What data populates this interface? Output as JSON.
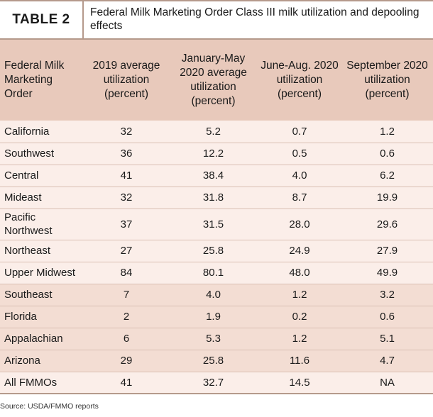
{
  "table": {
    "label": "TABLE 2",
    "title": "Federal Milk Marketing Order Class III milk utilization and depooling effects",
    "headers": [
      "Federal Milk Marketing Order",
      "2019 average utilization (percent)",
      "January-May 2020 average utilization (percent)",
      "June-Aug. 2020 utilization (percent)",
      "September 2020 utilization (percent)"
    ],
    "rows": [
      {
        "order": "California",
        "y2019": "32",
        "janmay": "5.2",
        "junaug": "0.7",
        "sep": "1.2"
      },
      {
        "order": "Southwest",
        "y2019": "36",
        "janmay": "12.2",
        "junaug": "0.5",
        "sep": "0.6"
      },
      {
        "order": "Central",
        "y2019": "41",
        "janmay": "38.4",
        "junaug": "4.0",
        "sep": "6.2"
      },
      {
        "order": "Mideast",
        "y2019": "32",
        "janmay": "31.8",
        "junaug": "8.7",
        "sep": "19.9"
      },
      {
        "order": "Pacific Northwest",
        "y2019": "37",
        "janmay": "31.5",
        "junaug": "28.0",
        "sep": "29.6"
      },
      {
        "order": "Northeast",
        "y2019": "27",
        "janmay": "25.8",
        "junaug": "24.9",
        "sep": "27.9"
      },
      {
        "order": "Upper Midwest",
        "y2019": "84",
        "janmay": "80.1",
        "junaug": "48.0",
        "sep": "49.9"
      },
      {
        "order": "Southeast",
        "y2019": "7",
        "janmay": "4.0",
        "junaug": "1.2",
        "sep": "3.2"
      },
      {
        "order": "Florida",
        "y2019": "2",
        "janmay": "1.9",
        "junaug": "0.2",
        "sep": "0.6"
      },
      {
        "order": "Appalachian",
        "y2019": "6",
        "janmay": "5.3",
        "junaug": "1.2",
        "sep": "5.1"
      },
      {
        "order": "Arizona",
        "y2019": "29",
        "janmay": "25.8",
        "junaug": "11.6",
        "sep": "4.7"
      },
      {
        "order": "All FMMOs",
        "y2019": "41",
        "janmay": "32.7",
        "junaug": "14.5",
        "sep": "NA"
      }
    ],
    "source": "Source: USDA/FMMO reports"
  },
  "colors": {
    "header_bg": "#e8c9bb",
    "row_light": "#fbeee9",
    "row_dark": "#f3ddd3",
    "rule": "#b59a8c"
  }
}
